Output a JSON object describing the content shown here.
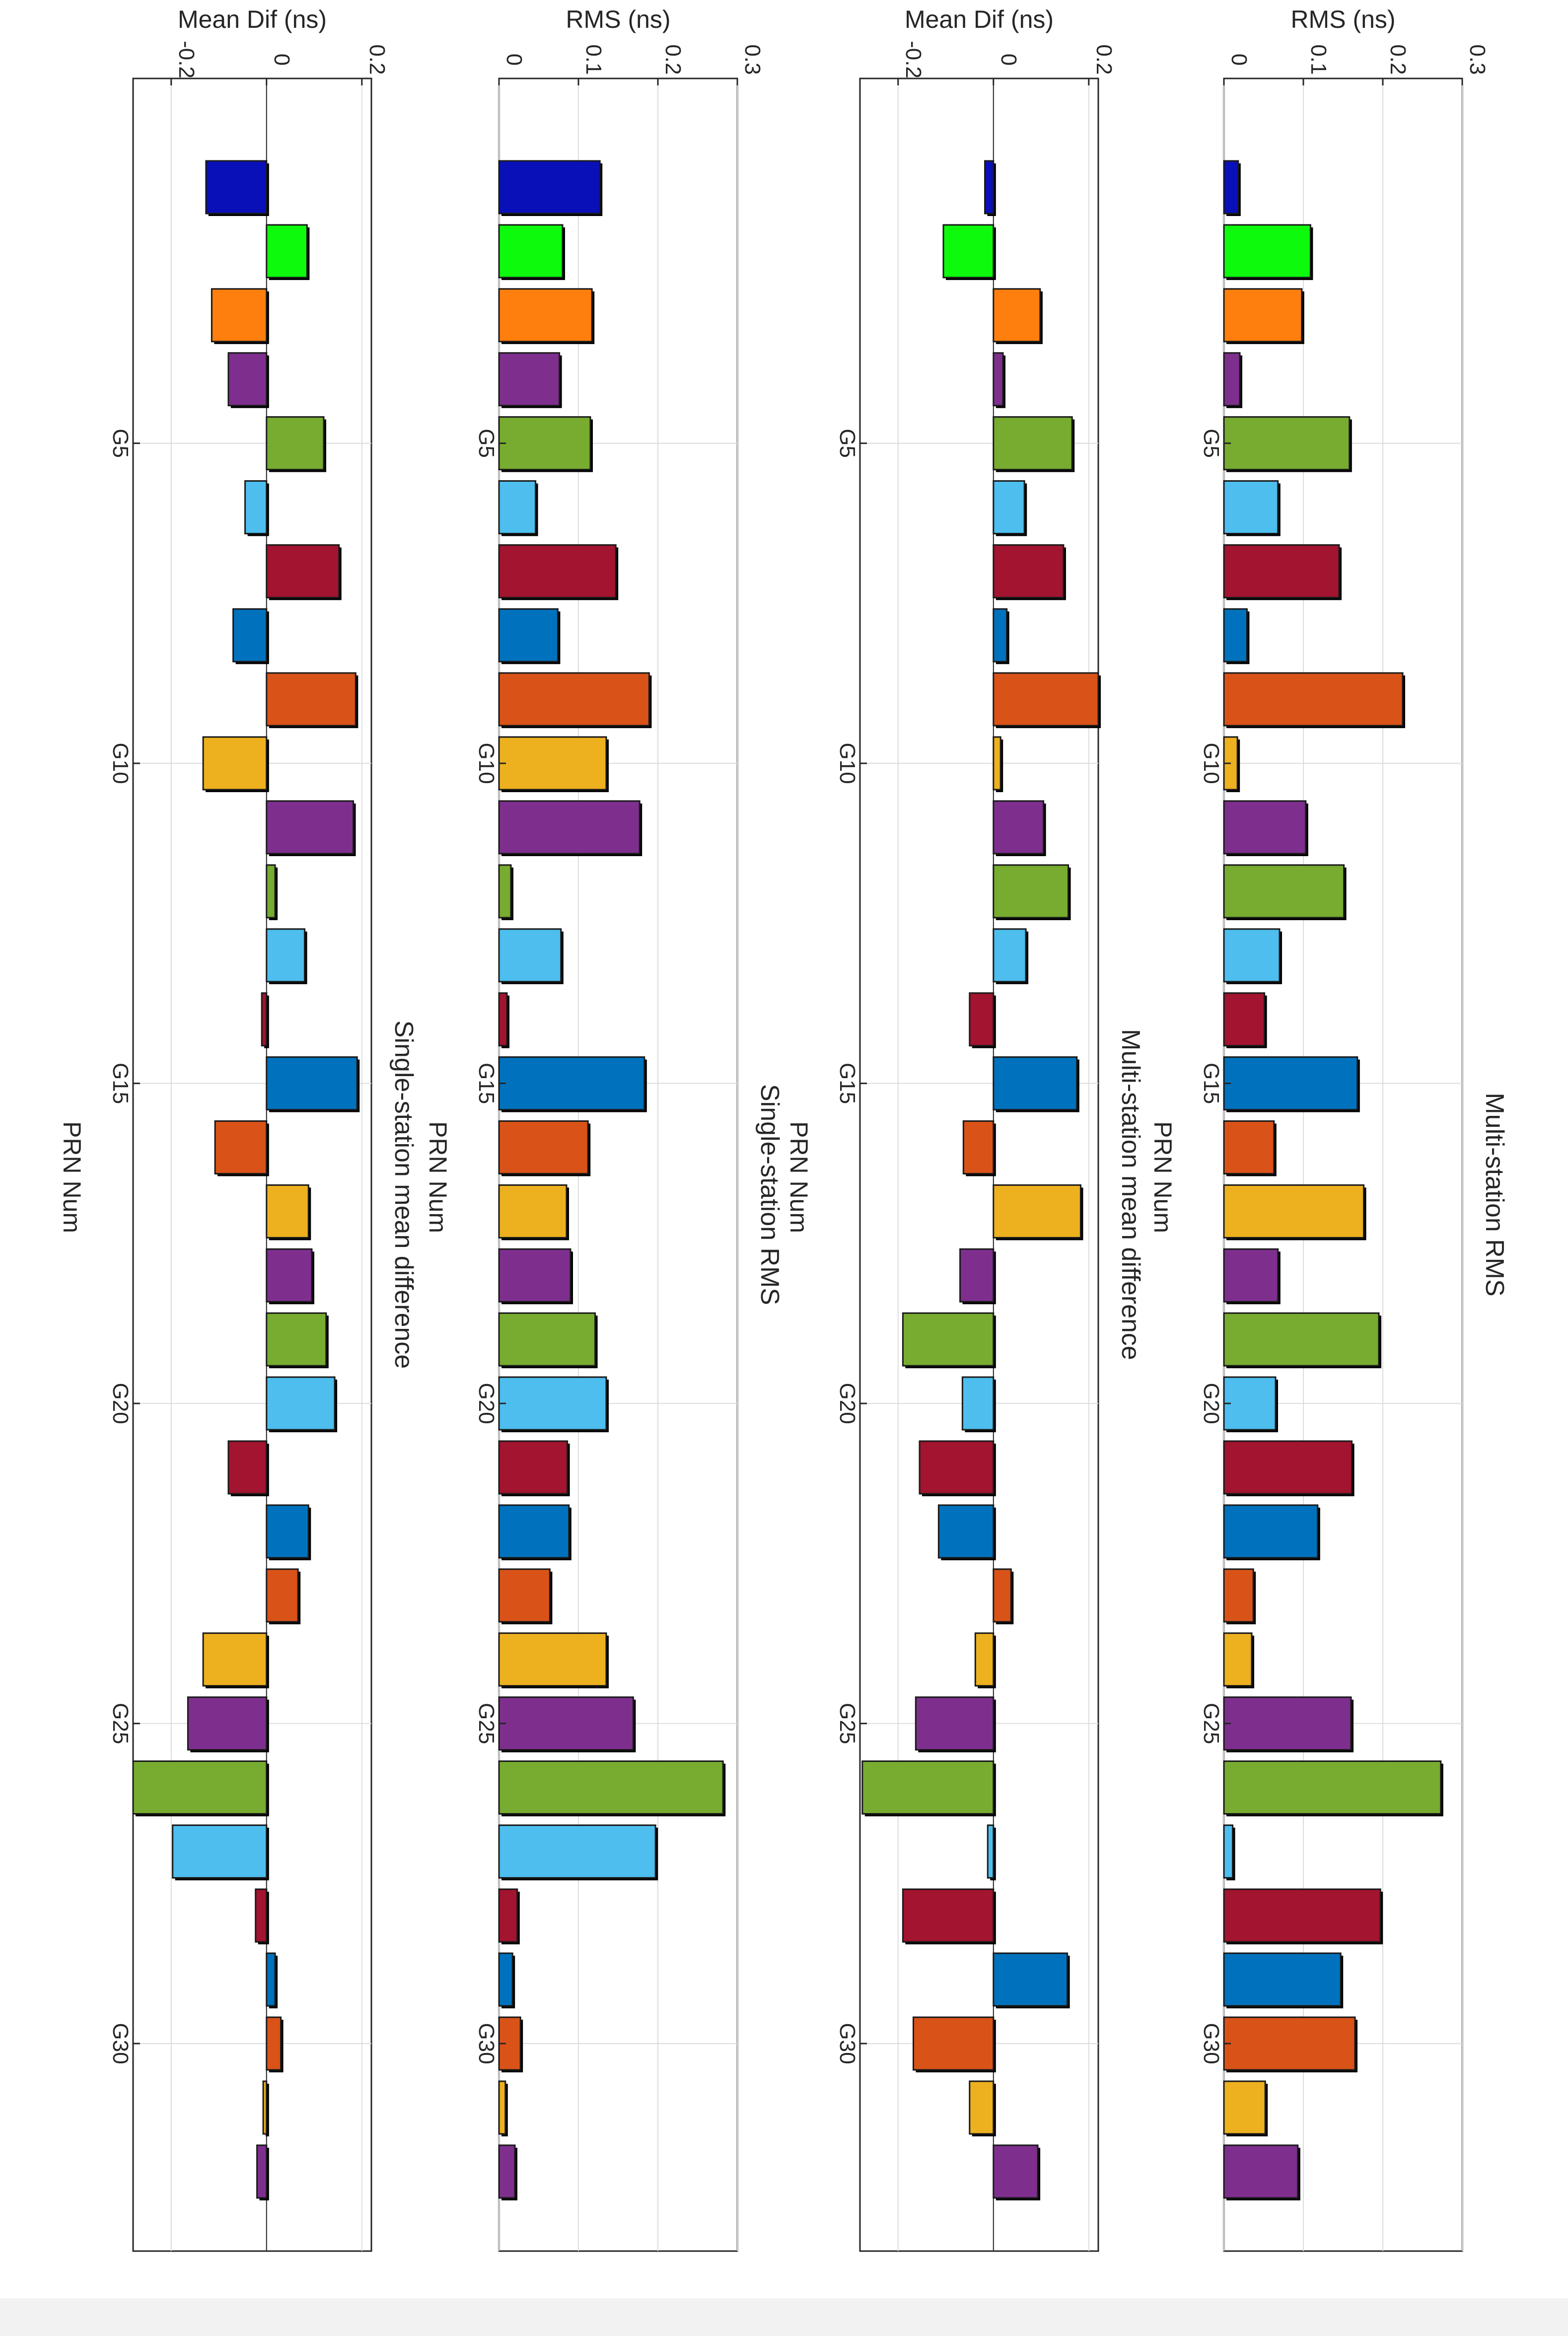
{
  "figure_orientation": "rotated 90 degrees clockwise",
  "chart_data": [
    {
      "type": "bar",
      "title": "Multi-station RMS",
      "xlabel": "PRN Num",
      "ylabel": "RMS (ns)",
      "ylim": [
        0,
        0.3
      ],
      "yticks": [
        "0",
        "0.1",
        "0.2",
        "0.3"
      ],
      "ytick_values": [
        0,
        0.1,
        0.2,
        0.3
      ],
      "xticks": [
        "G5",
        "G10",
        "G15",
        "G20",
        "G25",
        "G30"
      ],
      "xtick_values": [
        5,
        10,
        15,
        20,
        25,
        30
      ],
      "categories": [
        1,
        2,
        3,
        4,
        5,
        6,
        7,
        8,
        9,
        10,
        11,
        12,
        13,
        14,
        15,
        16,
        17,
        18,
        19,
        20,
        21,
        22,
        23,
        24,
        25,
        26,
        27,
        28,
        29,
        30,
        31,
        32
      ],
      "values": [
        0.018,
        0.109,
        0.098,
        0.02,
        0.158,
        0.068,
        0.145,
        0.029,
        0.225,
        0.017,
        0.103,
        0.151,
        0.07,
        0.051,
        0.168,
        0.063,
        0.176,
        0.068,
        0.195,
        0.065,
        0.161,
        0.118,
        0.037,
        0.035,
        0.16,
        0.273,
        0.011,
        0.197,
        0.147,
        0.165,
        0.052,
        0.093
      ],
      "grid": true
    },
    {
      "type": "bar",
      "title": "Multi-station mean difference",
      "xlabel": "PRN Num",
      "ylabel": "Mean Dif (ns)",
      "ylim": [
        -0.28,
        0.22
      ],
      "yticks": [
        "-0.2",
        "0",
        "0.2"
      ],
      "ytick_values": [
        -0.2,
        0,
        0.2
      ],
      "xticks": [
        "G5",
        "G10",
        "G15",
        "G20",
        "G25",
        "G30"
      ],
      "xtick_values": [
        5,
        10,
        15,
        20,
        25,
        30
      ],
      "categories": [
        1,
        2,
        3,
        4,
        5,
        6,
        7,
        8,
        9,
        10,
        11,
        12,
        13,
        14,
        15,
        16,
        17,
        18,
        19,
        20,
        21,
        22,
        23,
        24,
        25,
        26,
        27,
        28,
        29,
        30,
        31,
        32
      ],
      "values": [
        -0.018,
        -0.105,
        0.098,
        0.02,
        0.165,
        0.065,
        0.147,
        0.028,
        0.22,
        0.015,
        0.105,
        0.157,
        0.068,
        -0.05,
        0.175,
        -0.063,
        0.183,
        -0.07,
        -0.19,
        -0.065,
        -0.155,
        -0.115,
        0.037,
        -0.038,
        -0.163,
        -0.275,
        -0.012,
        -0.19,
        0.155,
        -0.168,
        -0.05,
        0.093
      ],
      "grid": true
    },
    {
      "type": "bar",
      "title": "Single-station RMS",
      "xlabel": "PRN Num",
      "ylabel": "RMS (ns)",
      "ylim": [
        0,
        0.3
      ],
      "yticks": [
        "0",
        "0.1",
        "0.2",
        "0.3"
      ],
      "ytick_values": [
        0,
        0.1,
        0.2,
        0.3
      ],
      "xticks": [
        "G5",
        "G10",
        "G15",
        "G20",
        "G25",
        "G30"
      ],
      "xtick_values": [
        5,
        10,
        15,
        20,
        25,
        30
      ],
      "categories": [
        1,
        2,
        3,
        4,
        5,
        6,
        7,
        8,
        9,
        10,
        11,
        12,
        13,
        14,
        15,
        16,
        17,
        18,
        19,
        20,
        21,
        22,
        23,
        24,
        25,
        26,
        27,
        28,
        29,
        30,
        31,
        32
      ],
      "values": [
        0.127,
        0.08,
        0.117,
        0.076,
        0.115,
        0.046,
        0.147,
        0.074,
        0.189,
        0.135,
        0.177,
        0.015,
        0.078,
        0.01,
        0.183,
        0.112,
        0.085,
        0.09,
        0.121,
        0.135,
        0.086,
        0.088,
        0.064,
        0.135,
        0.169,
        0.282,
        0.197,
        0.023,
        0.017,
        0.027,
        0.008,
        0.02
      ],
      "grid": true
    },
    {
      "type": "bar",
      "title": "Single-station mean difference",
      "xlabel": "PRN Num",
      "ylabel": "Mean Dif (ns)",
      "ylim": [
        -0.28,
        0.22
      ],
      "yticks": [
        "-0.2",
        "0",
        "0.2"
      ],
      "ytick_values": [
        -0.2,
        0,
        0.2
      ],
      "xticks": [
        "G5",
        "G10",
        "G15",
        "G20",
        "G25",
        "G30"
      ],
      "xtick_values": [
        5,
        10,
        15,
        20,
        25,
        30
      ],
      "categories": [
        1,
        2,
        3,
        4,
        5,
        6,
        7,
        8,
        9,
        10,
        11,
        12,
        13,
        14,
        15,
        16,
        17,
        18,
        19,
        20,
        21,
        22,
        23,
        24,
        25,
        26,
        27,
        28,
        29,
        30,
        31,
        32
      ],
      "values": [
        -0.127,
        0.085,
        -0.115,
        -0.08,
        0.12,
        -0.045,
        0.152,
        -0.07,
        0.187,
        -0.133,
        0.182,
        0.018,
        0.08,
        -0.01,
        0.19,
        -0.108,
        0.088,
        0.095,
        0.125,
        0.143,
        -0.08,
        0.088,
        0.066,
        -0.133,
        -0.165,
        -0.28,
        -0.197,
        -0.023,
        0.018,
        0.03,
        -0.007,
        -0.02
      ],
      "grid": true
    }
  ],
  "colors": {
    "palette": [
      "#0a10b8",
      "#0dfa0d",
      "#ff7f0e",
      "#7e2f8e",
      "#77ac30",
      "#4dbeee",
      "#a2142f",
      "#0072bd",
      "#d95319",
      "#edb120"
    ],
    "bar_color_sequence": [
      "#0a10b8",
      "#0dfa0d",
      "#ff7f0e",
      "#7e2f8e",
      "#77ac30",
      "#4dbeee",
      "#a2142f",
      "#0072bd",
      "#d95319",
      "#edb120",
      "#7e2f8e",
      "#77ac30",
      "#4dbeee",
      "#a2142f",
      "#0072bd",
      "#d95319",
      "#edb120",
      "#7e2f8e",
      "#77ac30",
      "#4dbeee",
      "#a2142f",
      "#0072bd",
      "#d95319",
      "#edb120",
      "#7e2f8e",
      "#77ac30",
      "#4dbeee",
      "#a2142f",
      "#0072bd",
      "#d95319",
      "#edb120",
      "#7e2f8e"
    ]
  }
}
